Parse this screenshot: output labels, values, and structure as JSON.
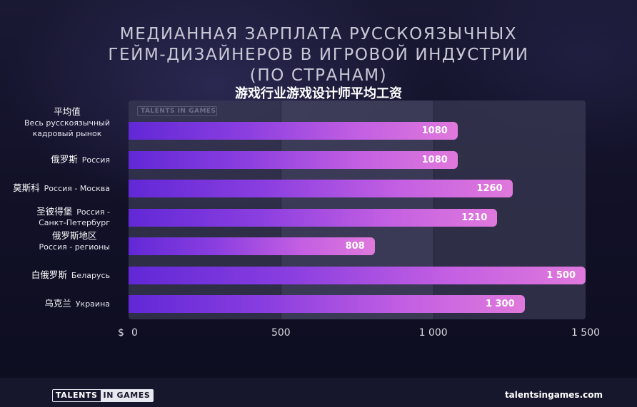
{
  "header": {
    "title_lines": [
      "МЕДИАННАЯ ЗАРПЛАТА РУССКОЯЗЫЧНЫХ",
      "ГЕЙМ-ДИЗАЙНЕРОВ В ИГРОВОЙ ИНДУСТРИИ",
      "(ПО СТРАНАМ)"
    ],
    "subtitle": "游戏行业游戏设计师平均工资"
  },
  "chart_data": {
    "type": "bar",
    "orientation": "horizontal",
    "categories": [
      {
        "cn": "平均值",
        "ru": [
          "Весь русскоязычный",
          "кадровый рынок"
        ]
      },
      {
        "cn": "俄罗斯",
        "ru": [
          "Россия"
        ]
      },
      {
        "cn": "莫斯科",
        "ru": [
          "Россия - Москва"
        ]
      },
      {
        "cn": "圣彼得堡",
        "ru": [
          "Россия -",
          "Санкт-Петербург"
        ]
      },
      {
        "cn": "俄罗斯地区",
        "ru": [
          "Россия - регионы"
        ]
      },
      {
        "cn": "白俄罗斯",
        "ru": [
          "Беларусь"
        ]
      },
      {
        "cn": "乌克兰",
        "ru": [
          "Украина"
        ]
      }
    ],
    "values": [
      1080,
      1080,
      1260,
      1210,
      808,
      1500,
      1300
    ],
    "value_labels": [
      "1080",
      "1080",
      "1260",
      "1210",
      "808",
      "1 500",
      "1 300"
    ],
    "xlim": [
      0,
      1500
    ],
    "x_ticks": [
      0,
      500,
      1000,
      1500
    ],
    "x_tick_labels": [
      "0",
      "500",
      "1 000",
      "1 500"
    ],
    "currency_label": "$",
    "bar_colors": {
      "start": "#6128d6",
      "end": "#e079dc"
    }
  },
  "footer": {
    "logo_left": "TALENTS",
    "logo_right": "IN GAMES",
    "website": "talentsingames.com"
  },
  "watermark": "TALENTS IN GAMES"
}
